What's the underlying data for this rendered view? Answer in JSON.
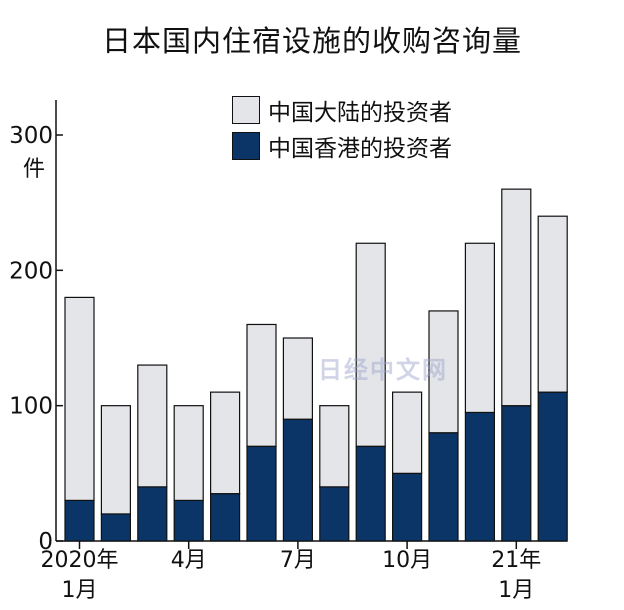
{
  "chart_data": {
    "type": "bar",
    "stacked": true,
    "title": "日本国内住宿设施的收购咨询量",
    "ylabel": "件",
    "ylim": [
      0,
      300
    ],
    "yticks": [
      0,
      100,
      200,
      300
    ],
    "grid": false,
    "legend_position": "top-right",
    "categories": [
      "2020-01",
      "2020-02",
      "2020-03",
      "2020-04",
      "2020-05",
      "2020-06",
      "2020-07",
      "2020-08",
      "2020-09",
      "2020-10",
      "2020-11",
      "2020-12",
      "2021-01",
      "2021-02"
    ],
    "x_tick_labels": [
      {
        "index": 0,
        "lines": [
          "2020年",
          "1月"
        ]
      },
      {
        "index": 3,
        "lines": [
          "4月"
        ]
      },
      {
        "index": 6,
        "lines": [
          "7月"
        ]
      },
      {
        "index": 9,
        "lines": [
          "10月"
        ]
      },
      {
        "index": 12,
        "lines": [
          "21年",
          "1月"
        ]
      }
    ],
    "series": [
      {
        "name": "中国香港的投资者",
        "color": "#0b3566",
        "values": [
          30,
          20,
          40,
          30,
          35,
          70,
          90,
          40,
          70,
          50,
          80,
          95,
          100,
          110
        ]
      },
      {
        "name": "中国大陆的投资者",
        "color": "#e4e5e9",
        "values": [
          150,
          80,
          90,
          70,
          75,
          90,
          60,
          60,
          150,
          60,
          90,
          125,
          160,
          130
        ]
      }
    ]
  },
  "legend": {
    "items": [
      {
        "label": "中国大陆的投资者",
        "color": "#e4e5e9"
      },
      {
        "label": "中国香港的投资者",
        "color": "#0b3566"
      }
    ]
  },
  "watermark": "日经中文网"
}
